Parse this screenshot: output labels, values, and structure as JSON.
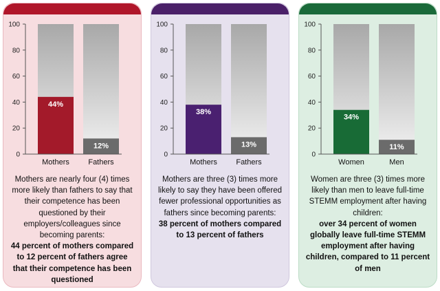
{
  "panels": [
    {
      "name": "panel-parents-competence",
      "topbar_color": "#b0162a",
      "panel_bg": "#f7dde0",
      "panel_border": "#eab8bf",
      "caption_normal": "Mothers are nearly four (4) times more likely than fathers to say that their competence has been questioned by their employers/colleagues since becoming parents:",
      "caption_bold": "44 percent of mothers compared to 12 percent of fathers agree that their competence has been questioned"
    },
    {
      "name": "panel-parents-opportunities",
      "topbar_color": "#4a2068",
      "panel_bg": "#e6e1ee",
      "panel_border": "#cfc6dd",
      "caption_normal": "Mothers are three (3) times more likely to say they have been offered fewer professional opportunities as fathers since becoming parents:",
      "caption_bold": "38 percent of mothers compared to 13 percent of fathers"
    },
    {
      "name": "panel-stemm-employment",
      "topbar_color": "#1a6a3a",
      "panel_bg": "#ddeee2",
      "panel_border": "#bcdcc6",
      "caption_normal": "Women are three (3) times more likely than men to leave full-time STEMM employment after having children:",
      "caption_bold": "over 34 percent of women globally leave full-time STEMM employment after having children, compared to 11 percent of men"
    }
  ],
  "chart_data": [
    {
      "type": "bar",
      "categories": [
        "Mothers",
        "Fathers"
      ],
      "values": [
        44,
        12
      ],
      "value_labels": [
        "44%",
        "12%"
      ],
      "ylim": [
        0,
        100
      ],
      "yticks": [
        0,
        20,
        40,
        60,
        80,
        100
      ],
      "colors": [
        "#a31a2a",
        "#6b6b6b"
      ],
      "background_bar_color": "#a8a8a8"
    },
    {
      "type": "bar",
      "categories": [
        "Mothers",
        "Fathers"
      ],
      "values": [
        38,
        13
      ],
      "value_labels": [
        "38%",
        "13%"
      ],
      "ylim": [
        0,
        100
      ],
      "yticks": [
        0,
        20,
        40,
        60,
        80,
        100
      ],
      "colors": [
        "#4a2070",
        "#6b6b6b"
      ],
      "background_bar_color": "#a8a8a8"
    },
    {
      "type": "bar",
      "categories": [
        "Women",
        "Men"
      ],
      "values": [
        34,
        11
      ],
      "value_labels": [
        "34%",
        "11%"
      ],
      "ylim": [
        0,
        100
      ],
      "yticks": [
        0,
        20,
        40,
        60,
        80,
        100
      ],
      "colors": [
        "#186b36",
        "#6b6b6b"
      ],
      "background_bar_color": "#a8a8a8"
    }
  ]
}
